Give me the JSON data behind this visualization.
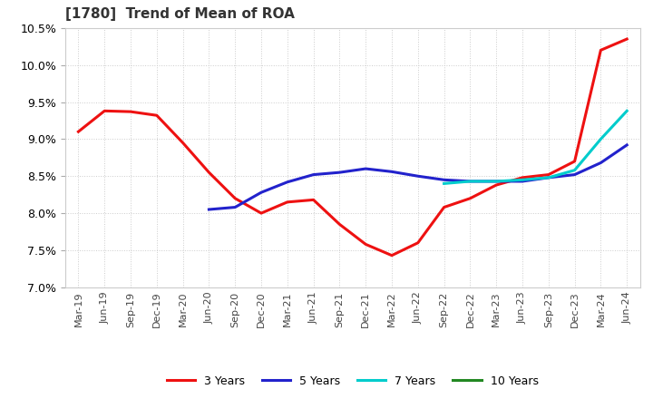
{
  "title": "[1780]  Trend of Mean of ROA",
  "ylim": [
    0.07,
    0.105
  ],
  "yticks": [
    0.07,
    0.075,
    0.08,
    0.085,
    0.09,
    0.095,
    0.1,
    0.105
  ],
  "background_color": "#ffffff",
  "plot_bg_color": "#ffffff",
  "grid_color": "#cccccc",
  "grid_style": "dotted",
  "series": {
    "3 Years": {
      "color": "#ee1111",
      "linewidth": 2.2,
      "data": [
        [
          "Mar-19",
          0.091
        ],
        [
          "Jun-19",
          0.0938
        ],
        [
          "Sep-19",
          0.0937
        ],
        [
          "Dec-19",
          0.0932
        ],
        [
          "Mar-20",
          0.0895
        ],
        [
          "Jun-20",
          0.0855
        ],
        [
          "Sep-20",
          0.082
        ],
        [
          "Dec-20",
          0.08
        ],
        [
          "Mar-21",
          0.0815
        ],
        [
          "Jun-21",
          0.0818
        ],
        [
          "Sep-21",
          0.0785
        ],
        [
          "Dec-21",
          0.0758
        ],
        [
          "Mar-22",
          0.0743
        ],
        [
          "Jun-22",
          0.076
        ],
        [
          "Sep-22",
          0.0808
        ],
        [
          "Dec-22",
          0.082
        ],
        [
          "Mar-23",
          0.0838
        ],
        [
          "Jun-23",
          0.0848
        ],
        [
          "Sep-23",
          0.0852
        ],
        [
          "Dec-23",
          0.087
        ],
        [
          "Mar-24",
          0.102
        ],
        [
          "Jun-24",
          0.1035
        ]
      ]
    },
    "5 Years": {
      "color": "#2222cc",
      "linewidth": 2.2,
      "data": [
        [
          "Mar-19",
          null
        ],
        [
          "Jun-19",
          null
        ],
        [
          "Sep-19",
          null
        ],
        [
          "Dec-19",
          null
        ],
        [
          "Mar-20",
          null
        ],
        [
          "Jun-20",
          0.0805
        ],
        [
          "Sep-20",
          0.0808
        ],
        [
          "Dec-20",
          0.0828
        ],
        [
          "Mar-21",
          0.0842
        ],
        [
          "Jun-21",
          0.0852
        ],
        [
          "Sep-21",
          0.0855
        ],
        [
          "Dec-21",
          0.086
        ],
        [
          "Mar-22",
          0.0856
        ],
        [
          "Jun-22",
          0.085
        ],
        [
          "Sep-22",
          0.0845
        ],
        [
          "Dec-22",
          0.0843
        ],
        [
          "Mar-23",
          0.0843
        ],
        [
          "Jun-23",
          0.0843
        ],
        [
          "Sep-23",
          0.0848
        ],
        [
          "Dec-23",
          0.0852
        ],
        [
          "Mar-24",
          0.0868
        ],
        [
          "Jun-24",
          0.0892
        ]
      ]
    },
    "7 Years": {
      "color": "#00cccc",
      "linewidth": 2.2,
      "data": [
        [
          "Mar-19",
          null
        ],
        [
          "Jun-19",
          null
        ],
        [
          "Sep-19",
          null
        ],
        [
          "Dec-19",
          null
        ],
        [
          "Mar-20",
          null
        ],
        [
          "Jun-20",
          null
        ],
        [
          "Sep-20",
          null
        ],
        [
          "Dec-20",
          null
        ],
        [
          "Mar-21",
          null
        ],
        [
          "Jun-21",
          null
        ],
        [
          "Sep-21",
          null
        ],
        [
          "Dec-21",
          null
        ],
        [
          "Mar-22",
          null
        ],
        [
          "Jun-22",
          null
        ],
        [
          "Sep-22",
          0.084
        ],
        [
          "Dec-22",
          0.0843
        ],
        [
          "Mar-23",
          0.0843
        ],
        [
          "Jun-23",
          0.0845
        ],
        [
          "Sep-23",
          0.0848
        ],
        [
          "Dec-23",
          0.0858
        ],
        [
          "Mar-24",
          0.09
        ],
        [
          "Jun-24",
          0.0938
        ]
      ]
    },
    "10 Years": {
      "color": "#228822",
      "linewidth": 2.2,
      "data": [
        [
          "Mar-19",
          null
        ],
        [
          "Jun-19",
          null
        ],
        [
          "Sep-19",
          null
        ],
        [
          "Dec-19",
          null
        ],
        [
          "Mar-20",
          null
        ],
        [
          "Jun-20",
          null
        ],
        [
          "Sep-20",
          null
        ],
        [
          "Dec-20",
          null
        ],
        [
          "Mar-21",
          null
        ],
        [
          "Jun-21",
          null
        ],
        [
          "Sep-21",
          null
        ],
        [
          "Dec-21",
          null
        ],
        [
          "Mar-22",
          null
        ],
        [
          "Jun-22",
          null
        ],
        [
          "Sep-22",
          null
        ],
        [
          "Dec-22",
          null
        ],
        [
          "Mar-23",
          null
        ],
        [
          "Jun-23",
          null
        ],
        [
          "Sep-23",
          null
        ],
        [
          "Dec-23",
          null
        ],
        [
          "Mar-24",
          null
        ],
        [
          "Jun-24",
          null
        ]
      ]
    }
  },
  "xtick_labels": [
    "Mar-19",
    "Jun-19",
    "Sep-19",
    "Dec-19",
    "Mar-20",
    "Jun-20",
    "Sep-20",
    "Dec-20",
    "Mar-21",
    "Jun-21",
    "Sep-21",
    "Dec-21",
    "Mar-22",
    "Jun-22",
    "Sep-22",
    "Dec-22",
    "Mar-23",
    "Jun-23",
    "Sep-23",
    "Dec-23",
    "Mar-24",
    "Jun-24"
  ],
  "legend_entries": [
    "3 Years",
    "5 Years",
    "7 Years",
    "10 Years"
  ],
  "legend_colors": [
    "#ee1111",
    "#2222cc",
    "#00cccc",
    "#228822"
  ]
}
